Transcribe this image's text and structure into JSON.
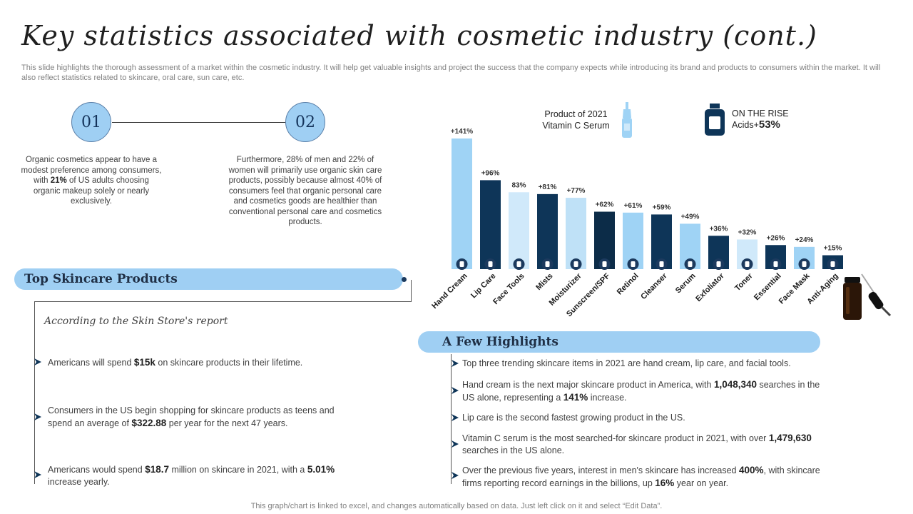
{
  "page": {
    "title": "Key statistics associated with cosmetic industry (cont.)",
    "subtitle": "This slide highlights the thorough assessment of a market within the cosmetic industry. It will help get valuable insights and project the success that the company expects while introducing its brand and products to consumers within the market. It will also reflect statistics related to skincare, oral care, sun care, etc.",
    "footnote": "This graph/chart is linked to excel,  and changes automatically based on data. Just left click on it and select “Edit Data”."
  },
  "stats": [
    {
      "number": "01",
      "text_before": "Organic cosmetics appear to have a modest preference among consumers, with ",
      "bold": "21%",
      "text_after": " of US adults choosing organic makeup solely or nearly exclusively."
    },
    {
      "number": "02",
      "text": "Furthermore, 28% of men and 22% of women will primarily use organic skin care products, possibly because almost 40% of consumers feel that organic personal care and cosmetics goods are healthier than conventional personal care and cosmetics products."
    }
  ],
  "skincare_panel": {
    "heading": "Top Skincare Products",
    "report_heading": "According to the Skin Store's report",
    "bullets": [
      {
        "before": "Americans will spend ",
        "bold": "$15k",
        "after": " on skincare products in their lifetime."
      },
      {
        "before": "Consumers in the US begin shopping for skincare products as teens and spend an average  of ",
        "bold": "$322.88",
        "after": " per year for the next 47 years."
      },
      {
        "before": "Americans would spend ",
        "bold": "$18.7",
        "after": " million on skincare in 2021, with a ",
        "bold2": "5.01%",
        "after2": " increase yearly."
      }
    ]
  },
  "highlights": {
    "heading": "A Few Highlights",
    "items": [
      {
        "before": "Top three trending skincare items in 2021 are hand cream, lip care, and facial tools.",
        "bold": "",
        "after": ""
      },
      {
        "before": "Hand cream is the next major skincare product in America, with ",
        "bold": "1,048,340",
        "after": " searches in the US alone, representing a ",
        "bold2": "141%",
        "after2": " increase."
      },
      {
        "before": "Lip care is the second fastest growing product in the US.",
        "bold": "",
        "after": ""
      },
      {
        "before": "Vitamin C serum is the most searched-for  skincare product in 2021, with over ",
        "bold": "1,479,630",
        "after": " searches in the US alone."
      },
      {
        "before": "Over the previous  five  years, interest in men's skincare has increased ",
        "bold": "400%",
        "after": ", with skincare firms reporting record earnings in the billions, up ",
        "bold2": "16%",
        "after2": " year on year."
      }
    ]
  },
  "legend": {
    "product_line1": "Product of 2021",
    "product_line2": "Vitamin C Serum",
    "rise_line1": "ON THE RISE",
    "rise_line2": "Acids+",
    "rise_value": "53%"
  },
  "chart_data": {
    "type": "bar",
    "categories": [
      "Hand Cream",
      "Lip Care",
      "Face Tools",
      "Mists",
      "Moisturizer",
      "Sunscreen/SPF",
      "Retinol",
      "Cleanser",
      "Serum",
      "Exfoliator",
      "Toner",
      "Essential",
      "Face Mask",
      "Anti-Aging"
    ],
    "values": [
      141,
      96,
      83,
      81,
      77,
      62,
      61,
      59,
      49,
      36,
      32,
      26,
      24,
      15
    ],
    "value_labels": [
      "+141%",
      "+96%",
      "83%",
      "+81%",
      "+77%",
      "+62%",
      "+61%",
      "+59%",
      "+49%",
      "+36%",
      "+32%",
      "+26%",
      "+24%",
      "+15%"
    ],
    "bar_colors": [
      "#9fd3f5",
      "#0e3558",
      "#d0e9fa",
      "#0e3558",
      "#bfe1f7",
      "#0c2c48",
      "#9fd3f5",
      "#0e3558",
      "#9fd3f5",
      "#0e3558",
      "#d0e9fa",
      "#0e3558",
      "#9fd3f5",
      "#0e3558"
    ],
    "title": "",
    "xlabel": "",
    "ylabel": "",
    "ylim": [
      0,
      141
    ]
  },
  "colors": {
    "accent_light": "#9fcff3",
    "accent_dark": "#0e3558"
  }
}
